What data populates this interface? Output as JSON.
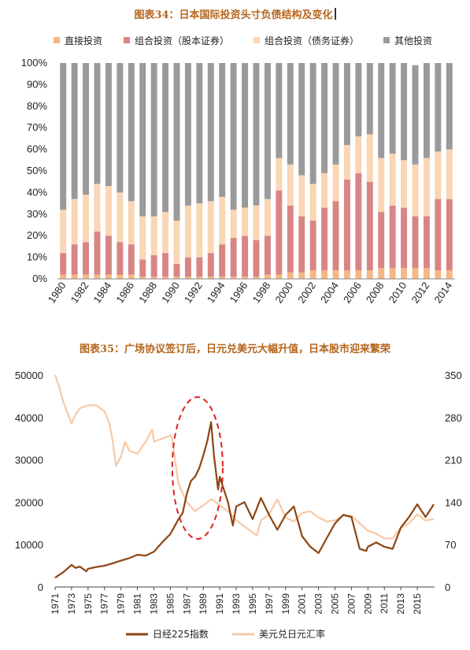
{
  "chart_data": [
    {
      "type": "bar",
      "stacked": true,
      "title": "图表34：日本国际投资头寸负债结构及变化",
      "categories": [
        "1980",
        "1981",
        "1982",
        "1983",
        "1984",
        "1985",
        "1986",
        "1987",
        "1988",
        "1989",
        "1990",
        "1991",
        "1992",
        "1993",
        "1994",
        "1995",
        "1996",
        "1997",
        "1998",
        "1999",
        "2000",
        "2001",
        "2002",
        "2003",
        "2004",
        "2005",
        "2006",
        "2007",
        "2008",
        "2009",
        "2010",
        "2011",
        "2012",
        "2013",
        "2014"
      ],
      "x_tick_labels": [
        "1980",
        "1982",
        "1984",
        "1986",
        "1988",
        "1990",
        "1992",
        "1994",
        "1996",
        "1998",
        "2000",
        "2002",
        "2004",
        "2006",
        "2008",
        "2010",
        "2012",
        "2014"
      ],
      "ylim": [
        0,
        100
      ],
      "y_ticks": [
        "0%",
        "10%",
        "20%",
        "30%",
        "40%",
        "50%",
        "60%",
        "70%",
        "80%",
        "90%",
        "100%"
      ],
      "legend_position": "top",
      "series": [
        {
          "name": "直接投资",
          "color": "#f5b784",
          "values": [
            2,
            2,
            2,
            2,
            2,
            2,
            2,
            1,
            1,
            1,
            1,
            1,
            1,
            1,
            1,
            1,
            1,
            1,
            2,
            2,
            3,
            3,
            4,
            4,
            4,
            4,
            4,
            4,
            5,
            5,
            5,
            5,
            5,
            4,
            4
          ]
        },
        {
          "name": "组合投资（股本证券）",
          "color": "#d98585",
          "values": [
            10,
            14,
            15,
            20,
            18,
            15,
            14,
            8,
            10,
            11,
            6,
            9,
            9,
            11,
            15,
            18,
            19,
            17,
            18,
            39,
            31,
            26,
            23,
            29,
            32,
            42,
            45,
            41,
            26,
            29,
            28,
            24,
            24,
            33,
            33
          ]
        },
        {
          "name": "组合投资（债务证券）",
          "color": "#fad6b4",
          "values": [
            20,
            21,
            22,
            22,
            23,
            23,
            20,
            20,
            18,
            19,
            20,
            24,
            25,
            24,
            22,
            13,
            13,
            16,
            17,
            15,
            19,
            19,
            17,
            16,
            17,
            16,
            17,
            22,
            25,
            24,
            22,
            24,
            27,
            22,
            23
          ]
        },
        {
          "name": "其他投资",
          "color": "#9a9a9a",
          "values": [
            68,
            63,
            61,
            56,
            57,
            60,
            64,
            71,
            71,
            69,
            73,
            66,
            65,
            64,
            62,
            68,
            67,
            66,
            63,
            44,
            47,
            52,
            56,
            51,
            47,
            38,
            34,
            33,
            44,
            42,
            45,
            46,
            44,
            41,
            40
          ]
        }
      ]
    },
    {
      "type": "line",
      "title": "图表35：广场协议签订后，日元兑美元大幅升值，日本股市迎来繁荣",
      "x_tick_labels": [
        "1971",
        "1973",
        "1975",
        "1977",
        "1979",
        "1981",
        "1983",
        "1985",
        "1987",
        "1989",
        "1991",
        "1993",
        "1995",
        "1997",
        "1999",
        "2001",
        "2003",
        "2005",
        "2007",
        "2009",
        "2011",
        "2013",
        "2015"
      ],
      "xlim": [
        1971,
        2017.1
      ],
      "y_left_lim": [
        0,
        50000
      ],
      "y_left_ticks": [
        "0",
        "10000",
        "20000",
        "30000",
        "40000",
        "50000"
      ],
      "y_right_lim": [
        0,
        350
      ],
      "y_right_ticks": [
        "0",
        "70",
        "140",
        "210",
        "280",
        "350"
      ],
      "legend_position": "bottom",
      "annotation": "red dashed ellipse around the 1986–1990 bubble peak",
      "series": [
        {
          "name": "日经225指数",
          "color": "#8b4513",
          "axis": "left",
          "x": [
            1971,
            1972,
            1973,
            1973.5,
            1974,
            1974.8,
            1975,
            1976,
            1977,
            1978,
            1979,
            1980,
            1981,
            1982,
            1983,
            1984,
            1985,
            1986,
            1986.5,
            1987,
            1987.5,
            1988,
            1988.5,
            1989,
            1989.5,
            1989.95,
            1990.3,
            1990.8,
            1991,
            1991.5,
            1992,
            1992.6,
            1993,
            1994,
            1995,
            1996,
            1997,
            1998,
            1999,
            2000,
            2001,
            2002,
            2003,
            2004,
            2005,
            2006,
            2007,
            2008,
            2008.8,
            2009,
            2010,
            2011,
            2012,
            2013,
            2014,
            2015,
            2016,
            2017
          ],
          "y": [
            2200,
            3500,
            5200,
            4500,
            4800,
            3700,
            4300,
            4700,
            5000,
            5600,
            6200,
            6800,
            7600,
            7400,
            8300,
            10500,
            12500,
            16000,
            17500,
            22000,
            25000,
            26000,
            28000,
            31000,
            34500,
            38900,
            31000,
            23000,
            26000,
            23000,
            20000,
            14500,
            19000,
            20000,
            16000,
            21000,
            17000,
            13500,
            17000,
            19000,
            12000,
            9500,
            8000,
            11500,
            15000,
            17000,
            16500,
            9000,
            8500,
            9500,
            10500,
            9500,
            9000,
            14000,
            16500,
            19500,
            16500,
            19500
          ]
        },
        {
          "name": "美元兑日元汇率",
          "color": "#f7c9a6",
          "axis": "right",
          "x": [
            1971,
            1971.5,
            1972,
            1973,
            1973.5,
            1974,
            1975,
            1976,
            1977,
            1977.6,
            1978,
            1978.4,
            1979,
            1979.5,
            1980,
            1981,
            1982,
            1982.8,
            1983,
            1984,
            1985,
            1985.2,
            1986,
            1987,
            1988,
            1989,
            1990,
            1990.5,
            1991,
            1992,
            1993,
            1994,
            1995,
            1995.5,
            1996,
            1997,
            1998,
            1998.5,
            1999,
            2000,
            2001,
            2002,
            2003,
            2004,
            2005,
            2006,
            2007,
            2008,
            2009,
            2010,
            2011,
            2012,
            2013,
            2014,
            2015,
            2016,
            2017
          ],
          "y": [
            350,
            330,
            305,
            270,
            285,
            295,
            300,
            300,
            290,
            270,
            240,
            200,
            215,
            240,
            225,
            220,
            240,
            260,
            240,
            245,
            250,
            245,
            170,
            140,
            125,
            135,
            145,
            140,
            135,
            125,
            110,
            100,
            90,
            85,
            110,
            120,
            145,
            130,
            115,
            108,
            122,
            125,
            115,
            108,
            110,
            118,
            118,
            105,
            93,
            88,
            80,
            80,
            98,
            105,
            120,
            110,
            112
          ]
        }
      ]
    }
  ]
}
